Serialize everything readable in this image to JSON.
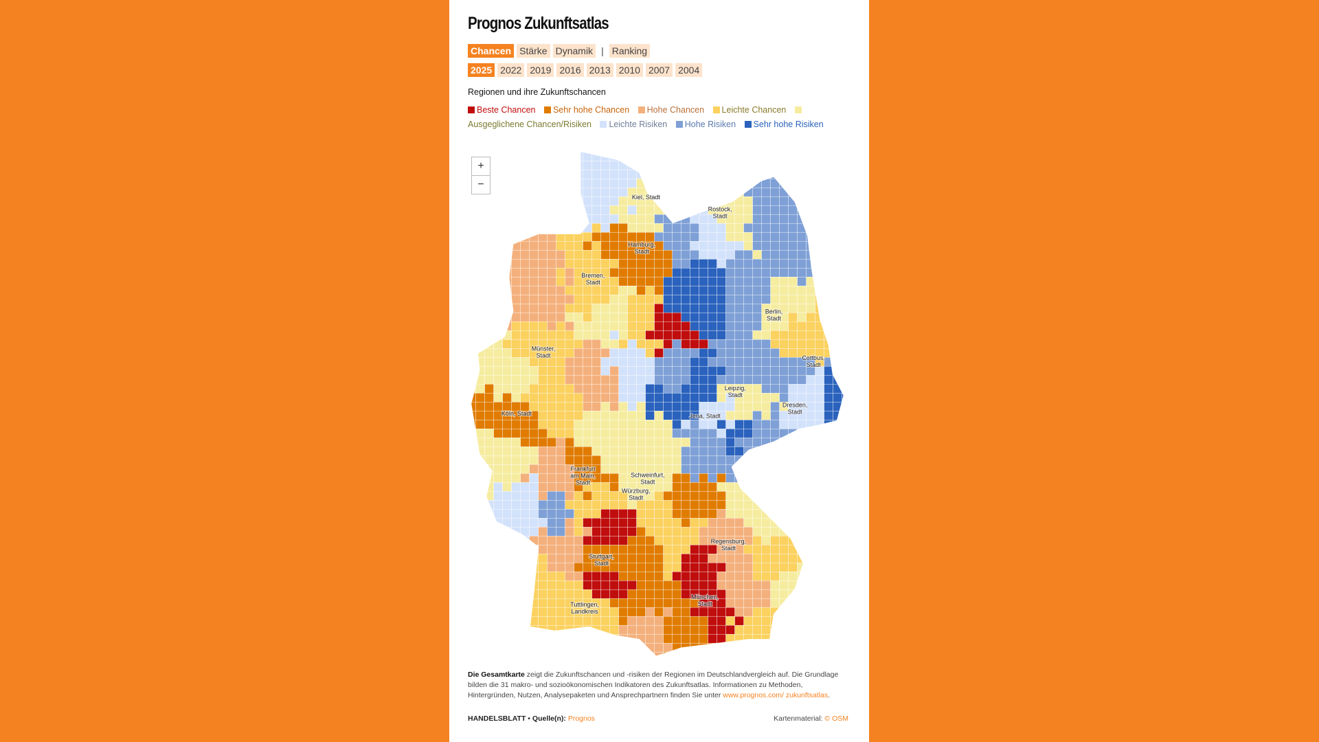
{
  "title": "Prognos Zukunftsatlas",
  "view_tabs": [
    {
      "label": "Chancen",
      "active": true
    },
    {
      "label": "Stärke",
      "active": false
    },
    {
      "label": "Dynamik",
      "active": false
    },
    {
      "label": "|",
      "separator": true
    },
    {
      "label": "Ranking",
      "active": false
    }
  ],
  "year_tabs": [
    {
      "label": "2025",
      "active": true
    },
    {
      "label": "2022"
    },
    {
      "label": "2019"
    },
    {
      "label": "2016"
    },
    {
      "label": "2013"
    },
    {
      "label": "2010"
    },
    {
      "label": "2007"
    },
    {
      "label": "2004"
    }
  ],
  "legend_title": "Regionen und ihre Zukunftschancen",
  "legend": [
    {
      "label": "Beste Chancen",
      "color": "#c00d0d",
      "text_color": "#c00d0d"
    },
    {
      "label": "Sehr hohe Chancen",
      "color": "#e07b00",
      "text_color": "#c8640a"
    },
    {
      "label": "Hohe Chancen",
      "color": "#f4b07c",
      "text_color": "#b8703a"
    },
    {
      "label": "Leichte Chancen",
      "color": "#fbd15f",
      "text_color": "#8a7a2a"
    },
    {
      "label": "Ausgeglichene Chancen/Risiken",
      "color": "#f6eca0",
      "text_color": "#7a7a30"
    },
    {
      "label": "Leichte Risiken",
      "color": "#d3e2fb",
      "text_color": "#6f7f9a"
    },
    {
      "label": "Hohe Risiken",
      "color": "#7ea0d6",
      "text_color": "#5a7ab0"
    },
    {
      "label": "Sehr hohe Risiken",
      "color": "#2a62bd",
      "text_color": "#2a62bd"
    }
  ],
  "zoom_controls": {
    "plus": "+",
    "minus": "−"
  },
  "cities": [
    {
      "l1": "Kiel, Stadt"
    },
    {
      "l1": "Rostock,",
      "l2": "Stadt"
    },
    {
      "l1": "Hamburg,",
      "l2": "Stadt"
    },
    {
      "l1": "Bremen,",
      "l2": "Stadt"
    },
    {
      "l1": "Berlin,",
      "l2": "Stadt"
    },
    {
      "l1": "Münster,",
      "l2": "Stadt"
    },
    {
      "l1": "Cottbus,",
      "l2": "Stadt"
    },
    {
      "l1": "Leipzig,",
      "l2": "Stadt"
    },
    {
      "l1": "Dresden,",
      "l2": "Stadt"
    },
    {
      "l1": "Köln, Stadt"
    },
    {
      "l1": "Jena, Stadt"
    },
    {
      "l1": "Frankfurt",
      "l2": "am Main,",
      "l3": "Stadt"
    },
    {
      "l1": "Schweinfurt,",
      "l2": "Stadt"
    },
    {
      "l1": "Würzburg,",
      "l2": "Stadt"
    },
    {
      "l1": "Regensburg,",
      "l2": "Stadt"
    },
    {
      "l1": "Stuttgart,",
      "l2": "Stadt"
    },
    {
      "l1": "München,",
      "l2": "Stadt"
    },
    {
      "l1": "Tuttlingen,",
      "l2": "Landkreis"
    }
  ],
  "footer": {
    "bold": "Die Gesamtkarte",
    "text": " zeigt die Zukunftschancen und -risiken der Regionen im Deutschlandvergleich auf. Die Grundlage bilden die 31 makro- und sozioökonomischen Indikatoren des Zukunftsatlas. Informationen zu Methoden, Hintergründen, Nutzen, Analysepaketen und Ansprechpartnern finden Sie unter ",
    "link": "www.prognos.com/ zukunftsatlas",
    "end": "."
  },
  "source": {
    "brand": "HANDELSBLATT",
    "bullet": " • ",
    "label": "Quelle(n): ",
    "link": "Prognos"
  },
  "map_credit": {
    "label": "Kartenmaterial: ",
    "link": "© OSM"
  }
}
